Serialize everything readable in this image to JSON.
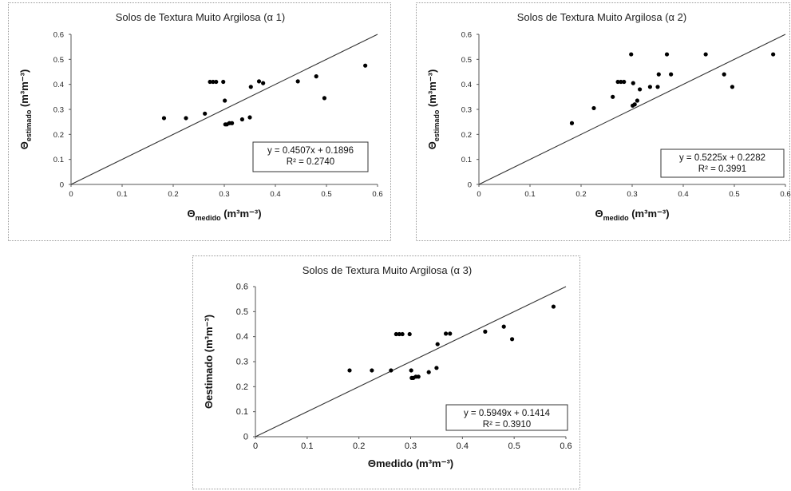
{
  "chart_data": [
    {
      "type": "scatter",
      "title": "Solos de Textura Muito Argilosa (α 1)",
      "xlabel": "Θmedido (m³m⁻³)",
      "xlabel_parts": {
        "symbol": "Θ",
        "sub": "medido",
        "unit": "(m³m⁻³)"
      },
      "ylabel": "Θestimado (m³m⁻³)",
      "ylabel_parts": {
        "symbol": "Θ",
        "sub": "estimado",
        "unit": "(m³m⁻³)"
      },
      "xlim": [
        0,
        0.6
      ],
      "ylim": [
        0,
        0.6
      ],
      "xticks": [
        "0",
        "0.1",
        "0.2",
        "0.3",
        "0.4",
        "0.5",
        "0.6"
      ],
      "yticks": [
        "0",
        "0.1",
        "0.2",
        "0.3",
        "0.4",
        "0.5",
        "0.6"
      ],
      "reference_line": [
        [
          0,
          0
        ],
        [
          0.6,
          0.6
        ]
      ],
      "equation": "y = 0.4507x + 0.1896",
      "r2": "R² = 0.2740",
      "legend_placement": "bottom-right",
      "grid": false,
      "series": [
        {
          "x": [
            0.182,
            0.225,
            0.262,
            0.272,
            0.278,
            0.284,
            0.298,
            0.301,
            0.302,
            0.305,
            0.31,
            0.315,
            0.335,
            0.35,
            0.352,
            0.368,
            0.376,
            0.444,
            0.48,
            0.496,
            0.576
          ],
          "y": [
            0.265,
            0.265,
            0.283,
            0.41,
            0.41,
            0.41,
            0.41,
            0.335,
            0.24,
            0.24,
            0.245,
            0.245,
            0.26,
            0.268,
            0.39,
            0.412,
            0.405,
            0.412,
            0.432,
            0.345,
            0.475
          ]
        }
      ]
    },
    {
      "type": "scatter",
      "title": "Solos de Textura Muito Argilosa (α 2)",
      "xlabel": "Θmedido (m³m⁻³)",
      "xlabel_parts": {
        "symbol": "Θ",
        "sub": "medido",
        "unit": "(m³m⁻³)"
      },
      "ylabel": "Θestimado (m³m⁻³)",
      "ylabel_parts": {
        "symbol": "Θ",
        "sub": "estimado",
        "unit": "(m³m⁻³)"
      },
      "xlim": [
        0,
        0.6
      ],
      "ylim": [
        0,
        0.6
      ],
      "xticks": [
        "0",
        "0.1",
        "0.2",
        "0.3",
        "0.4",
        "0.5",
        "0.6"
      ],
      "yticks": [
        "0",
        "0.1",
        "0.2",
        "0.3",
        "0.4",
        "0.5",
        "0.6"
      ],
      "reference_line": [
        [
          0,
          0
        ],
        [
          0.6,
          0.6
        ]
      ],
      "equation": "y = 0.5225x + 0.2282",
      "r2": "R² = 0.3991",
      "legend_placement": "bottom-right",
      "grid": false,
      "series": [
        {
          "x": [
            0.182,
            0.225,
            0.262,
            0.272,
            0.278,
            0.284,
            0.298,
            0.301,
            0.302,
            0.305,
            0.31,
            0.315,
            0.335,
            0.35,
            0.352,
            0.368,
            0.376,
            0.444,
            0.48,
            0.496,
            0.576
          ],
          "y": [
            0.245,
            0.305,
            0.35,
            0.41,
            0.41,
            0.41,
            0.52,
            0.315,
            0.405,
            0.32,
            0.335,
            0.38,
            0.39,
            0.39,
            0.44,
            0.52,
            0.44,
            0.52,
            0.44,
            0.39,
            0.52
          ]
        }
      ]
    },
    {
      "type": "scatter",
      "title": "Solos de Textura Muito Argilosa (α 3)",
      "xlabel": "Θmedido (m³m⁻³)",
      "ylabel": "Θestimado (m³m⁻³)",
      "xlim": [
        0,
        0.6
      ],
      "ylim": [
        0,
        0.6
      ],
      "xticks": [
        "0",
        "0.1",
        "0.2",
        "0.3",
        "0.4",
        "0.5",
        "0.6"
      ],
      "yticks": [
        "0",
        "0.1",
        "0.2",
        "0.3",
        "0.4",
        "0.5",
        "0.6"
      ],
      "reference_line": [
        [
          0,
          0
        ],
        [
          0.6,
          0.6
        ]
      ],
      "equation": "y = 0.5949x + 0.1414",
      "r2": "R² = 0.3910",
      "legend_placement": "bottom-right",
      "grid": false,
      "series": [
        {
          "x": [
            0.182,
            0.225,
            0.262,
            0.272,
            0.278,
            0.284,
            0.298,
            0.301,
            0.302,
            0.305,
            0.31,
            0.315,
            0.335,
            0.35,
            0.352,
            0.368,
            0.376,
            0.444,
            0.48,
            0.496,
            0.576
          ],
          "y": [
            0.265,
            0.265,
            0.265,
            0.41,
            0.41,
            0.41,
            0.41,
            0.265,
            0.235,
            0.235,
            0.24,
            0.24,
            0.258,
            0.275,
            0.37,
            0.412,
            0.412,
            0.42,
            0.44,
            0.39,
            0.52
          ]
        }
      ]
    }
  ]
}
